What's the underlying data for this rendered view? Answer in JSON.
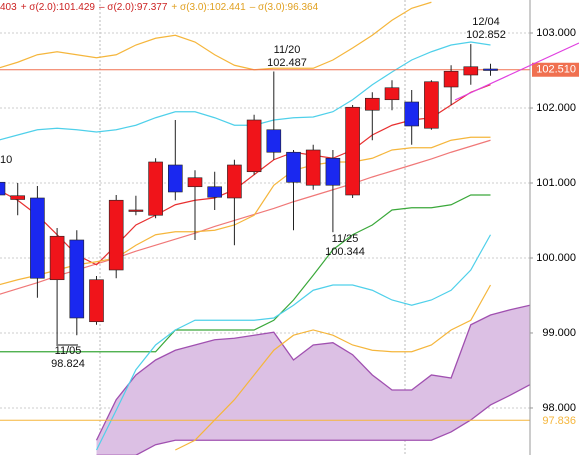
{
  "chart_data": {
    "type": "candlestick",
    "legend": [
      {
        "text": "403",
        "color": "#cc2222"
      },
      {
        "text": "+ σ(2.0):101.429",
        "color": "#cc2222"
      },
      {
        "text": "– σ(2.0):97.377",
        "color": "#cc2222"
      },
      {
        "text": "+ σ(3.0):102.441",
        "color": "#e0a020"
      },
      {
        "text": "– σ(3.0):96.364",
        "color": "#e0a020"
      }
    ],
    "up_color": "#f0141a",
    "down_color": "#1a28f0",
    "open": [
      101.01,
      100.78,
      100.8,
      99.71,
      100.24,
      99.15,
      99.84,
      100.63,
      100.57,
      101.24,
      100.95,
      100.95,
      100.8,
      101.15,
      101.71,
      101.41,
      100.97,
      101.33,
      100.84,
      101.97,
      102.11,
      102.08,
      101.73,
      102.28,
      102.44,
      102.52
    ],
    "high": [
      101.1,
      101.0,
      100.96,
      100.4,
      100.37,
      99.76,
      100.84,
      100.83,
      101.33,
      101.84,
      101.17,
      101.15,
      101.31,
      101.91,
      102.487,
      101.44,
      101.51,
      101.44,
      102.04,
      102.21,
      102.37,
      102.24,
      102.37,
      102.57,
      102.852,
      102.59
    ],
    "low": [
      100.8,
      100.57,
      99.47,
      98.824,
      98.97,
      99.11,
      99.73,
      100.57,
      100.53,
      100.77,
      100.24,
      100.64,
      100.17,
      101.11,
      101.31,
      100.37,
      100.91,
      100.344,
      100.8,
      101.57,
      101.97,
      101.51,
      101.71,
      102.04,
      102.31,
      102.43
    ],
    "close": [
      100.84,
      100.83,
      99.73,
      100.29,
      99.2,
      99.71,
      100.77,
      100.64,
      101.28,
      100.88,
      101.07,
      100.81,
      101.24,
      101.84,
      101.41,
      101.01,
      101.44,
      100.97,
      102.01,
      102.13,
      102.27,
      101.76,
      102.35,
      102.49,
      102.55,
      102.51
    ],
    "lines": [
      {
        "color": "#f5b63c",
        "values": [
          102.53,
          102.61,
          102.71,
          102.75,
          102.71,
          102.67,
          102.71,
          102.84,
          102.93,
          102.97,
          102.88,
          102.71,
          102.57,
          102.51,
          102.53,
          102.53,
          102.53,
          102.64,
          102.8,
          102.97,
          103.17,
          103.33,
          103.41,
          null,
          null,
          null
        ]
      },
      {
        "color": "#4fd0ea",
        "values": [
          101.57,
          101.64,
          101.71,
          101.73,
          101.71,
          101.68,
          101.71,
          101.77,
          101.87,
          101.95,
          101.95,
          101.87,
          101.77,
          101.77,
          101.84,
          101.87,
          101.88,
          101.95,
          102.11,
          102.31,
          102.48,
          102.64,
          102.75,
          102.84,
          102.88,
          102.84
        ]
      },
      {
        "color": "#f07878",
        "values": [
          99.51,
          99.59,
          99.67,
          99.76,
          99.84,
          99.92,
          100.0,
          100.09,
          100.17,
          100.25,
          100.33,
          100.42,
          100.5,
          100.58,
          100.66,
          100.75,
          100.83,
          100.91,
          100.99,
          101.08,
          101.16,
          101.24,
          101.32,
          101.41,
          101.49,
          101.57
        ]
      },
      {
        "color": "#e83030",
        "values": [
          100.91,
          100.77,
          100.57,
          100.31,
          100.04,
          99.91,
          100.17,
          100.44,
          100.57,
          100.71,
          100.77,
          100.8,
          100.91,
          101.11,
          101.31,
          101.41,
          101.37,
          101.33,
          101.44,
          101.64,
          101.77,
          101.84,
          101.87,
          102.04,
          102.21,
          102.31
        ]
      },
      {
        "color": "#f5b63c",
        "values": [
          99.64,
          99.71,
          99.77,
          99.84,
          99.91,
          99.95,
          100.0,
          100.17,
          100.31,
          100.35,
          100.35,
          100.37,
          100.44,
          100.57,
          100.97,
          101.17,
          101.24,
          101.28,
          101.28,
          101.33,
          101.44,
          101.47,
          101.47,
          101.57,
          101.61,
          101.61
        ]
      },
      {
        "color": "#3aa83a",
        "values": [
          98.75,
          98.75,
          98.75,
          98.75,
          98.75,
          98.75,
          98.75,
          98.75,
          98.75,
          99.04,
          99.04,
          99.04,
          99.04,
          99.04,
          99.17,
          99.44,
          99.77,
          100.11,
          100.31,
          100.44,
          100.64,
          100.67,
          100.67,
          100.71,
          100.84,
          100.84
        ]
      },
      {
        "color": "#4fd0ea",
        "values": [
          null,
          null,
          null,
          null,
          null,
          97.44,
          97.97,
          98.51,
          98.84,
          99.04,
          99.17,
          99.17,
          99.17,
          99.17,
          99.2,
          99.37,
          99.57,
          99.64,
          99.64,
          99.57,
          99.44,
          99.37,
          99.44,
          99.57,
          99.84,
          100.31
        ]
      },
      {
        "color": "#f5b63c",
        "values": [
          null,
          null,
          null,
          null,
          null,
          null,
          null,
          null,
          null,
          97.44,
          97.57,
          97.84,
          98.11,
          98.44,
          98.77,
          98.97,
          99.04,
          98.97,
          98.84,
          98.77,
          98.75,
          98.75,
          98.84,
          99.04,
          99.17,
          99.64
        ]
      }
    ],
    "cloud": {
      "color": "#a050b0",
      "fill": "#dcc0e4",
      "upper": [
        null,
        null,
        null,
        null,
        null,
        97.57,
        98.11,
        98.44,
        98.64,
        98.77,
        98.84,
        98.91,
        98.93,
        98.97,
        99.01,
        98.64,
        98.84,
        98.87,
        98.71,
        98.44,
        98.24,
        98.24,
        98.44,
        98.4,
        99.11,
        99.24,
        99.31,
        99.37,
        99.37,
        99.37
      ],
      "lower": [
        null,
        null,
        null,
        null,
        null,
        97.37,
        97.37,
        97.37,
        97.51,
        97.57,
        97.57,
        97.57,
        97.57,
        97.57,
        97.57,
        97.57,
        97.57,
        97.57,
        97.57,
        97.57,
        97.57,
        97.57,
        97.57,
        97.68,
        97.84,
        98.04,
        98.17,
        98.31,
        98.37,
        98.4
      ]
    },
    "annotations": [
      {
        "texts": [
          "10"
        ]
      },
      {
        "texts": [
          "11/05",
          "98.824"
        ]
      },
      {
        "texts": [
          "11/20",
          "102.487"
        ]
      },
      {
        "texts": [
          "11/25",
          "100.344"
        ]
      },
      {
        "texts": [
          "12/04",
          "102.852"
        ]
      }
    ],
    "price_tags": [
      {
        "value": 102.51,
        "label": "102.510",
        "color": "#f07050"
      },
      {
        "value": 97.836,
        "label": "97.836",
        "color": "#f5b63c"
      }
    ],
    "ylim": [
      97.373,
      103.44
    ],
    "yticks": [
      {
        "value": 103,
        "label": "103.000"
      },
      {
        "value": 102,
        "label": "102.000"
      },
      {
        "value": 101,
        "label": "101.000"
      },
      {
        "value": 100,
        "label": "100.000"
      },
      {
        "value": 99,
        "label": "99.000"
      },
      {
        "value": 98,
        "label": "98.000"
      }
    ],
    "grid": true
  }
}
